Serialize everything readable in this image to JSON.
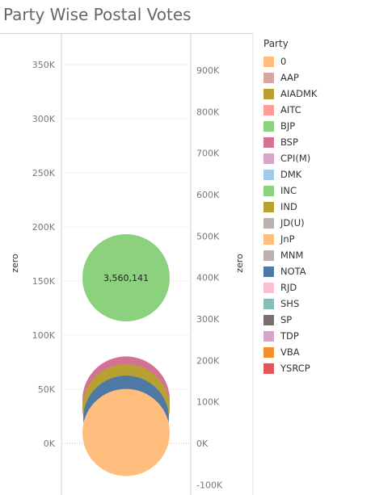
{
  "chart_data": {
    "type": "scatter",
    "title": "Party Wise Postal Votes",
    "ylabel_left": "zero",
    "ylabel_right": "zero",
    "left_axis": {
      "ylim": [
        -45000,
        375000
      ],
      "ticks": [
        0,
        50000,
        100000,
        150000,
        200000,
        250000,
        300000,
        350000
      ],
      "tick_labels": [
        "0K",
        "50K",
        "100K",
        "150K",
        "200K",
        "250K",
        "300K",
        "350K"
      ]
    },
    "right_axis": {
      "ylim": [
        -115000,
        975000
      ],
      "ticks": [
        -100000,
        0,
        100000,
        200000,
        300000,
        400000,
        500000,
        600000,
        700000,
        800000,
        900000
      ],
      "tick_labels": [
        "-100K",
        "0K",
        "100K",
        "200K",
        "300K",
        "400K",
        "500K",
        "600K",
        "700K",
        "800K",
        "900K"
      ]
    },
    "grid": true,
    "legend": {
      "title": "Party",
      "placement": "right"
    },
    "series": [
      {
        "party": "BSP",
        "y_left": 40000,
        "size": 1100000,
        "color": "#d37295"
      },
      {
        "party": "AIADMK",
        "y_left": 33000,
        "size": 1100000,
        "color": "#b9a033"
      },
      {
        "party": "NOTA",
        "y_left": 23000,
        "size": 900000,
        "color": "#4e79a7"
      },
      {
        "party": "0",
        "y_left": 10000,
        "size": 1300000,
        "color": "#ffbe7d"
      },
      {
        "party": "BJP",
        "y_left": 153000,
        "size": 3560141,
        "label": "3,560,141",
        "color": "#8cd17d"
      }
    ],
    "legend_entries": [
      {
        "name": "0",
        "color": "#ffbe7d"
      },
      {
        "name": "AAP",
        "color": "#d4a6a0"
      },
      {
        "name": "AIADMK",
        "color": "#b9a033"
      },
      {
        "name": "AITC",
        "color": "#ff9d9a"
      },
      {
        "name": "BJP",
        "color": "#8cd17d"
      },
      {
        "name": "BSP",
        "color": "#d37295"
      },
      {
        "name": "CPI(M)",
        "color": "#d4a6c8"
      },
      {
        "name": "DMK",
        "color": "#a0cbe8"
      },
      {
        "name": "INC",
        "color": "#8cd17d"
      },
      {
        "name": "IND",
        "color": "#b9a033"
      },
      {
        "name": "JD(U)",
        "color": "#bab0ac"
      },
      {
        "name": "JnP",
        "color": "#ffbe7d"
      },
      {
        "name": "MNM",
        "color": "#bab0ac"
      },
      {
        "name": "NOTA",
        "color": "#4e79a7"
      },
      {
        "name": "RJD",
        "color": "#fabfd2"
      },
      {
        "name": "SHS",
        "color": "#86bcb6"
      },
      {
        "name": "SP",
        "color": "#79706e"
      },
      {
        "name": "TDP",
        "color": "#d4a6c8"
      },
      {
        "name": "VBA",
        "color": "#f28e2b"
      },
      {
        "name": "YSRCP",
        "color": "#e15759"
      }
    ]
  }
}
